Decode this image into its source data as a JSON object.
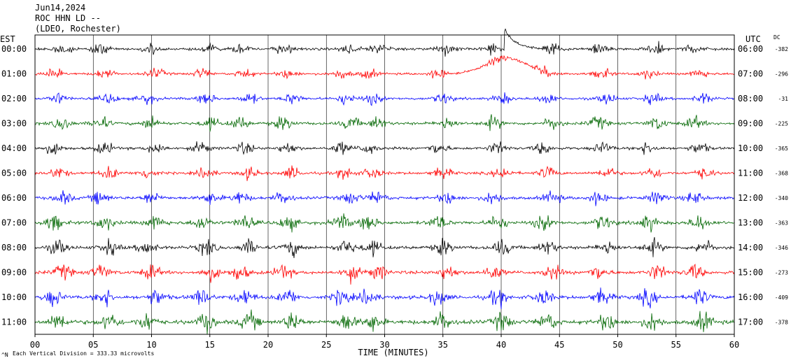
{
  "header": {
    "date": "Jun14,2024",
    "station": "ROC HHN LD --",
    "network": "(LDEO, Rochester)"
  },
  "labels": {
    "left_timezone": "EST",
    "right_timezone": "UTC",
    "dc_header": "DC",
    "x_axis_title": "TIME (MINUTES)",
    "scale_note": "Each Vertical Division =  333.33 microvolts",
    "scale_mark": "^N"
  },
  "colors": {
    "cycle": [
      "#000000",
      "#ff0000",
      "#0000ff",
      "#006600"
    ],
    "grid": "#000000",
    "background": "#ffffff"
  },
  "chart_data": {
    "type": "line",
    "xlabel": "TIME (MINUTES)",
    "xlim": [
      0,
      60
    ],
    "x_ticks": [
      "00",
      "05",
      "10",
      "15",
      "20",
      "25",
      "30",
      "35",
      "40",
      "45",
      "50",
      "55",
      "60"
    ],
    "grid": true,
    "rows": [
      {
        "est": "00:00",
        "utc": "06:00",
        "dc": "-382",
        "color": "#000000",
        "amplitude": 0.55
      },
      {
        "est": "01:00",
        "utc": "07:00",
        "dc": "-296",
        "color": "#ff0000",
        "amplitude": 0.5
      },
      {
        "est": "02:00",
        "utc": "08:00",
        "dc": "-31",
        "color": "#0000ff",
        "amplitude": 0.55
      },
      {
        "est": "03:00",
        "utc": "09:00",
        "dc": "-225",
        "color": "#006600",
        "amplitude": 0.65
      },
      {
        "est": "04:00",
        "utc": "10:00",
        "dc": "-365",
        "color": "#000000",
        "amplitude": 0.6
      },
      {
        "est": "05:00",
        "utc": "11:00",
        "dc": "-368",
        "color": "#ff0000",
        "amplitude": 0.6
      },
      {
        "est": "06:00",
        "utc": "12:00",
        "dc": "-340",
        "color": "#0000ff",
        "amplitude": 0.65
      },
      {
        "est": "07:00",
        "utc": "13:00",
        "dc": "-363",
        "color": "#006600",
        "amplitude": 0.75
      },
      {
        "est": "08:00",
        "utc": "14:00",
        "dc": "-346",
        "color": "#000000",
        "amplitude": 0.75
      },
      {
        "est": "09:00",
        "utc": "15:00",
        "dc": "-273",
        "color": "#ff0000",
        "amplitude": 0.75
      },
      {
        "est": "10:00",
        "utc": "16:00",
        "dc": "-409",
        "color": "#0000ff",
        "amplitude": 0.8
      },
      {
        "est": "11:00",
        "utc": "17:00",
        "dc": "-378",
        "color": "#006600",
        "amplitude": 0.9
      }
    ]
  }
}
